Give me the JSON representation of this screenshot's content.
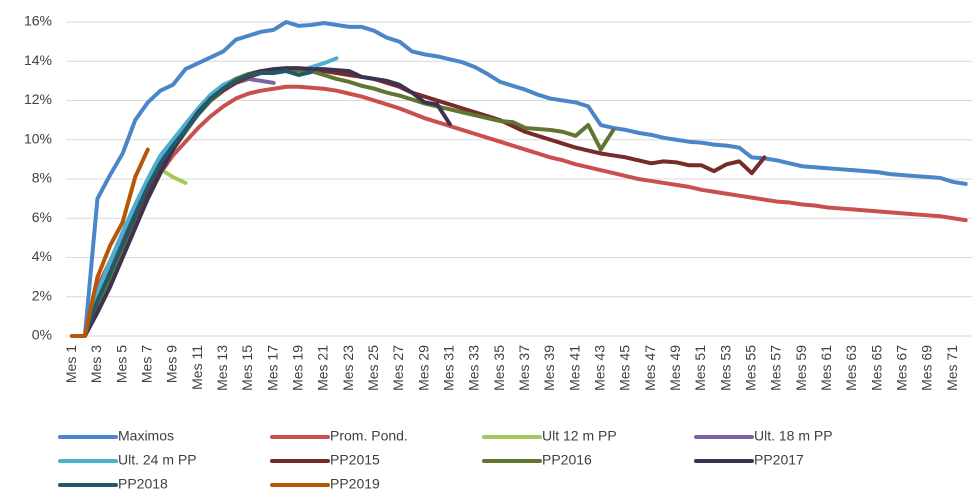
{
  "chart_data": {
    "type": "line",
    "categories": [
      "Mes 1",
      null,
      "Mes 3",
      null,
      "Mes 5",
      null,
      "Mes 7",
      null,
      "Mes 9",
      null,
      "Mes 11",
      null,
      "Mes 13",
      null,
      "Mes 15",
      null,
      "Mes 17",
      null,
      "Mes 19",
      null,
      "Mes 21",
      null,
      "Mes 23",
      null,
      "Mes 25",
      null,
      "Mes 27",
      null,
      "Mes 29",
      null,
      "Mes 31",
      null,
      "Mes 33",
      null,
      "Mes 35",
      null,
      "Mes 37",
      null,
      "Mes 39",
      null,
      "Mes 41",
      null,
      "Mes 43",
      null,
      "Mes 45",
      null,
      "Mes 47",
      null,
      "Mes 49",
      null,
      "Mes 51",
      null,
      "Mes 53",
      null,
      "Mes 55",
      null,
      "Mes 57",
      null,
      "Mes 59",
      null,
      "Mes 61",
      null,
      "Mes 63",
      null,
      "Mes 65",
      null,
      "Mes 67",
      null,
      "Mes 69",
      null,
      "Mes 71",
      null
    ],
    "ylim": [
      0,
      16
    ],
    "yticks": [
      {
        "value": 0,
        "label": "0%"
      },
      {
        "value": 2,
        "label": "2%"
      },
      {
        "value": 4,
        "label": "4%"
      },
      {
        "value": 6,
        "label": "6%"
      },
      {
        "value": 8,
        "label": "8%"
      },
      {
        "value": 10,
        "label": "10%"
      },
      {
        "value": 12,
        "label": "12%"
      },
      {
        "value": 14,
        "label": "14%"
      },
      {
        "value": 16,
        "label": "16%"
      }
    ],
    "grid": true,
    "legend": "bottom",
    "series": [
      {
        "name": "Maximos",
        "color": "#4a86c8",
        "values": [
          0,
          0,
          7,
          8.2,
          9.3,
          11,
          11.9,
          12.5,
          12.8,
          13.6,
          13.9,
          14.2,
          14.5,
          15.1,
          15.3,
          15.5,
          15.6,
          16.0,
          15.8,
          15.85,
          15.95,
          15.85,
          15.75,
          15.75,
          15.55,
          15.2,
          15.0,
          14.5,
          14.35,
          14.25,
          14.1,
          13.95,
          13.7,
          13.35,
          12.95,
          12.75,
          12.55,
          12.3,
          12.1,
          12.0,
          11.9,
          11.7,
          10.75,
          10.6,
          10.5,
          10.35,
          10.25,
          10.1,
          10.0,
          9.9,
          9.85,
          9.75,
          9.7,
          9.6,
          9.1,
          9.05,
          8.95,
          8.8,
          8.65,
          8.6,
          8.55,
          8.5,
          8.45,
          8.4,
          8.35,
          8.25,
          8.2,
          8.15,
          8.1,
          8.05,
          7.85,
          7.75
        ]
      },
      {
        "name": "Prom. Pond.",
        "color": "#c9504d",
        "values": [
          0,
          0,
          2.5,
          3.8,
          5,
          6.2,
          7.3,
          8.3,
          9.2,
          9.9,
          10.6,
          11.2,
          11.7,
          12.1,
          12.35,
          12.5,
          12.6,
          12.7,
          12.7,
          12.65,
          12.6,
          12.5,
          12.35,
          12.2,
          12.0,
          11.8,
          11.6,
          11.35,
          11.1,
          10.9,
          10.7,
          10.5,
          10.3,
          10.1,
          9.9,
          9.7,
          9.5,
          9.3,
          9.1,
          8.95,
          8.75,
          8.6,
          8.45,
          8.3,
          8.15,
          8.0,
          7.9,
          7.8,
          7.7,
          7.6,
          7.45,
          7.35,
          7.25,
          7.15,
          7.05,
          6.95,
          6.85,
          6.8,
          6.7,
          6.65,
          6.55,
          6.5,
          6.45,
          6.4,
          6.35,
          6.3,
          6.25,
          6.2,
          6.15,
          6.1,
          6.0,
          5.9
        ]
      },
      {
        "name": "Ult 12 m PP",
        "color": "#a3c95c",
        "values": [
          0,
          0,
          2.2,
          3.5,
          5,
          6.5,
          7.8,
          8.5,
          8.1,
          7.8,
          null,
          null,
          null,
          null,
          null,
          null,
          null,
          null,
          null,
          null,
          null,
          null,
          null,
          null,
          null,
          null,
          null,
          null,
          null,
          null,
          null,
          null,
          null,
          null,
          null,
          null,
          null,
          null,
          null,
          null,
          null,
          null,
          null,
          null,
          null,
          null,
          null,
          null,
          null,
          null,
          null,
          null,
          null,
          null,
          null,
          null,
          null,
          null,
          null,
          null,
          null,
          null,
          null,
          null,
          null,
          null,
          null,
          null,
          null,
          null,
          null,
          null
        ]
      },
      {
        "name": "Ult. 18 m PP",
        "color": "#8064a2",
        "values": [
          0,
          0,
          2,
          3.5,
          5,
          6.5,
          7.8,
          8.9,
          9.8,
          10.6,
          11.4,
          12.1,
          12.6,
          12.9,
          13.1,
          13.0,
          12.9,
          null,
          null,
          null,
          null,
          null,
          null,
          null,
          null,
          null,
          null,
          null,
          null,
          null,
          null,
          null,
          null,
          null,
          null,
          null,
          null,
          null,
          null,
          null,
          null,
          null,
          null,
          null,
          null,
          null,
          null,
          null,
          null,
          null,
          null,
          null,
          null,
          null,
          null,
          null,
          null,
          null,
          null,
          null,
          null,
          null,
          null,
          null,
          null,
          null,
          null,
          null,
          null,
          null,
          null,
          null
        ]
      },
      {
        "name": "Ult. 24 m PP",
        "color": "#4bb0d0",
        "values": [
          0,
          0,
          2.2,
          3.8,
          5.3,
          6.7,
          8,
          9.2,
          10,
          10.8,
          11.6,
          12.3,
          12.8,
          13.1,
          13.3,
          13.4,
          13.5,
          13.6,
          13.5,
          13.7,
          13.9,
          14.15,
          null,
          null,
          null,
          null,
          null,
          null,
          null,
          null,
          null,
          null,
          null,
          null,
          null,
          null,
          null,
          null,
          null,
          null,
          null,
          null,
          null,
          null,
          null,
          null,
          null,
          null,
          null,
          null,
          null,
          null,
          null,
          null,
          null,
          null,
          null,
          null,
          null,
          null,
          null,
          null,
          null,
          null,
          null,
          null,
          null,
          null,
          null,
          null,
          null,
          null
        ]
      },
      {
        "name": "PP2015",
        "color": "#772c2a",
        "values": [
          0,
          0,
          1.5,
          2.8,
          4.3,
          5.8,
          7.2,
          8.5,
          9.6,
          10.5,
          11.3,
          12.0,
          12.5,
          12.9,
          13.2,
          13.4,
          13.5,
          13.6,
          13.6,
          13.6,
          13.5,
          13.4,
          13.3,
          13.2,
          13.1,
          12.9,
          12.7,
          12.4,
          12.2,
          12.0,
          11.8,
          11.6,
          11.4,
          11.2,
          11.0,
          10.7,
          10.4,
          10.2,
          10.0,
          9.8,
          9.6,
          9.45,
          9.3,
          9.2,
          9.1,
          8.95,
          8.8,
          8.9,
          8.85,
          8.7,
          8.7,
          8.4,
          8.75,
          8.9,
          8.3,
          9.1,
          null,
          null,
          null,
          null,
          null,
          null,
          null,
          null,
          null,
          null,
          null,
          null,
          null,
          null,
          null,
          null
        ]
      },
      {
        "name": "PP2016",
        "color": "#5f7530",
        "values": [
          0,
          0,
          1.5,
          2.8,
          4.2,
          5.6,
          7,
          8.3,
          9.5,
          10.4,
          11.3,
          12.0,
          12.6,
          13.1,
          13.35,
          13.5,
          13.55,
          13.6,
          13.55,
          13.5,
          13.3,
          13.1,
          12.95,
          12.75,
          12.6,
          12.4,
          12.25,
          12.05,
          11.85,
          11.7,
          11.55,
          11.4,
          11.25,
          11.1,
          10.95,
          10.9,
          10.6,
          10.55,
          10.5,
          10.4,
          10.2,
          10.75,
          9.5,
          10.5,
          null,
          null,
          null,
          null,
          null,
          null,
          null,
          null,
          null,
          null,
          null,
          null,
          null,
          null,
          null,
          null,
          null,
          null,
          null,
          null,
          null,
          null,
          null,
          null,
          null,
          null,
          null,
          null
        ]
      },
      {
        "name": "PP2017",
        "color": "#3f3151",
        "values": [
          0,
          0,
          1.2,
          2.5,
          4,
          5.5,
          7,
          8.3,
          9.5,
          10.5,
          11.4,
          12.1,
          12.6,
          13.0,
          13.3,
          13.5,
          13.6,
          13.65,
          13.65,
          13.6,
          13.6,
          13.55,
          13.5,
          13.2,
          13.1,
          13.0,
          12.8,
          12.4,
          11.9,
          11.8,
          10.8,
          null,
          null,
          null,
          null,
          null,
          null,
          null,
          null,
          null,
          null,
          null,
          null,
          null,
          null,
          null,
          null,
          null,
          null,
          null,
          null,
          null,
          null,
          null,
          null,
          null,
          null,
          null,
          null,
          null,
          null,
          null,
          null,
          null,
          null,
          null,
          null,
          null,
          null,
          null,
          null,
          null
        ]
      },
      {
        "name": "PP2018",
        "color": "#215968",
        "values": [
          0,
          0,
          1.8,
          3.2,
          4.7,
          6.2,
          7.6,
          8.8,
          9.7,
          10.5,
          11.3,
          12.1,
          12.6,
          13.0,
          13.3,
          13.4,
          13.4,
          13.5,
          13.3,
          13.45,
          null,
          null,
          null,
          null,
          null,
          null,
          null,
          null,
          null,
          null,
          null,
          null,
          null,
          null,
          null,
          null,
          null,
          null,
          null,
          null,
          null,
          null,
          null,
          null,
          null,
          null,
          null,
          null,
          null,
          null,
          null,
          null,
          null,
          null,
          null,
          null,
          null,
          null,
          null,
          null,
          null,
          null,
          null,
          null,
          null,
          null,
          null,
          null,
          null,
          null,
          null,
          null
        ]
      },
      {
        "name": "PP2019",
        "color": "#b65708",
        "values": [
          0,
          0,
          3,
          4.6,
          5.8,
          8.1,
          9.5,
          null,
          null,
          null,
          null,
          null,
          null,
          null,
          null,
          null,
          null,
          null,
          null,
          null,
          null,
          null,
          null,
          null,
          null,
          null,
          null,
          null,
          null,
          null,
          null,
          null,
          null,
          null,
          null,
          null,
          null,
          null,
          null,
          null,
          null,
          null,
          null,
          null,
          null,
          null,
          null,
          null,
          null,
          null,
          null,
          null,
          null,
          null,
          null,
          null,
          null,
          null,
          null,
          null,
          null,
          null,
          null,
          null,
          null,
          null,
          null,
          null,
          null,
          null,
          null,
          null
        ]
      }
    ]
  }
}
